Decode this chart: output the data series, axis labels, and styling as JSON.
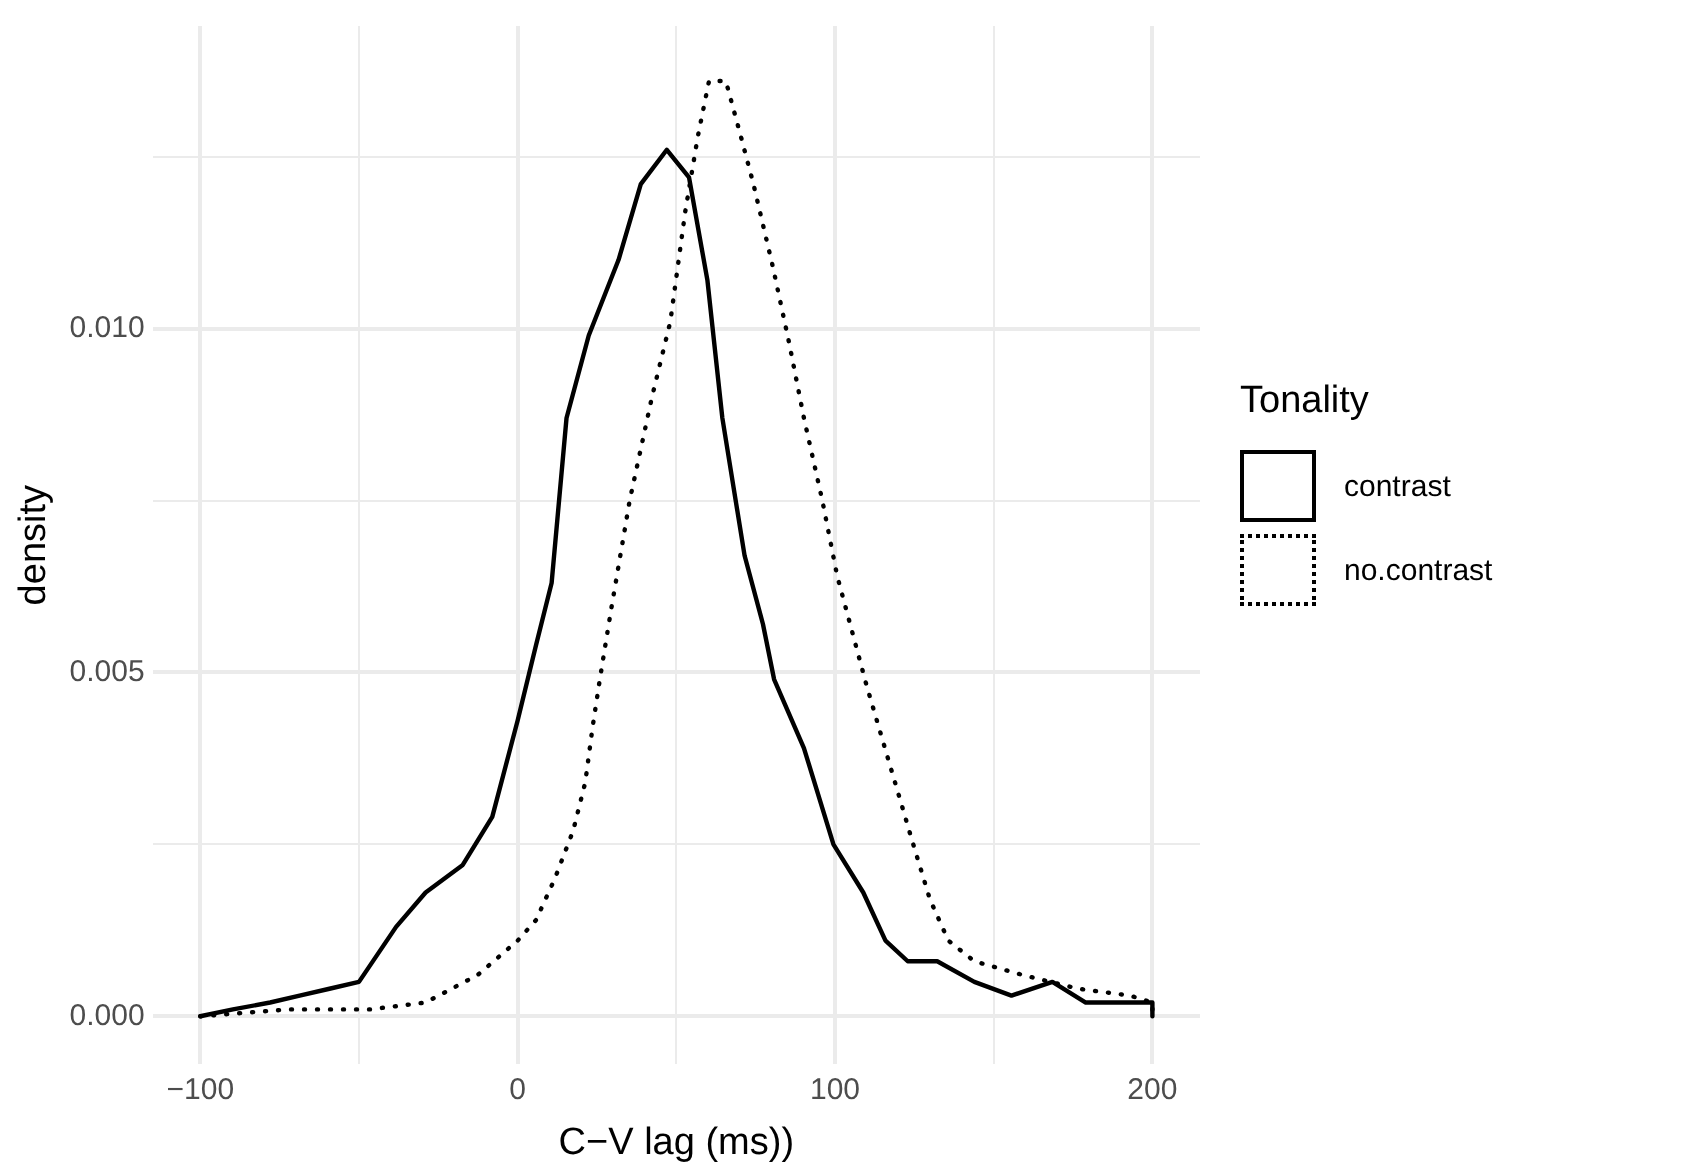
{
  "chart_data": {
    "type": "line",
    "xlabel": "C−V lag (ms))",
    "ylabel": "density",
    "legend_title": "Tonality",
    "xlim": [
      -115,
      215
    ],
    "ylim": [
      -0.0007,
      0.0144
    ],
    "xticks": [
      {
        "value": -100,
        "label": "−100"
      },
      {
        "value": -50,
        "label": null
      },
      0,
      {
        "value": 50,
        "label": null
      },
      100,
      {
        "value": 150,
        "label": null
      },
      200
    ],
    "yticks": [
      {
        "value": 0,
        "label": "0.000"
      },
      {
        "value": 0.0025,
        "label": null
      },
      {
        "value": 0.005,
        "label": "0.005"
      },
      {
        "value": 0.0075,
        "label": null
      },
      {
        "value": 0.01,
        "label": "0.010"
      },
      {
        "value": 0.0125,
        "label": null
      }
    ],
    "grid": true,
    "legend": "right",
    "marker": "none",
    "series": [
      {
        "name": "contrast",
        "color": "#000000",
        "line_style": "solid",
        "x": [
          -100,
          -89.7,
          -78,
          -68.7,
          -59.3,
          -50,
          -38.3,
          -29,
          -17.3,
          -8,
          0,
          5.8,
          10.7,
          15.4,
          22.4,
          31.8,
          38.8,
          47,
          54,
          59.8,
          64.5,
          71.5,
          77.3,
          80.8,
          90.2,
          99.5,
          108.9,
          115.9,
          122.9,
          132.2,
          143.9,
          155.6,
          168.5,
          179,
          200,
          200
        ],
        "values": [
          0,
          0.0001,
          0.0002,
          0.0003,
          0.0004,
          0.0005,
          0.0013,
          0.0018,
          0.0022,
          0.0029,
          0.0043,
          0.0054,
          0.0063,
          0.0087,
          0.0099,
          0.011,
          0.0121,
          0.0126,
          0.0122,
          0.0107,
          0.0087,
          0.0067,
          0.0057,
          0.0049,
          0.0039,
          0.0025,
          0.0018,
          0.0011,
          0.0008,
          0.0008,
          0.0005,
          0.0003,
          0.0005,
          0.0002,
          0.0002,
          0
        ]
      },
      {
        "name": "no.contrast",
        "color": "#000000",
        "line_style": "dotted",
        "x": [
          -100,
          -72,
          -46.5,
          -29,
          -20.8,
          -12.6,
          0,
          5.8,
          11.7,
          17.5,
          21.3,
          23.6,
          25.9,
          29.4,
          35.3,
          42.3,
          48.1,
          52.8,
          56.8,
          60.3,
          65.6,
          70.3,
          74.3,
          80.4,
          85.5,
          90.2,
          96,
          100.7,
          110,
          117,
          124,
          129.9,
          135.7,
          143.9,
          159.1,
          176.7,
          193,
          200,
          200
        ],
        "values": [
          0,
          0.0001,
          0.0001,
          0.0002,
          0.0004,
          0.0006,
          0.0011,
          0.0014,
          0.002,
          0.0027,
          0.0034,
          0.0042,
          0.0049,
          0.0059,
          0.0075,
          0.009,
          0.0101,
          0.0117,
          0.0128,
          0.0136,
          0.0136,
          0.0128,
          0.0121,
          0.0109,
          0.0098,
          0.0087,
          0.0075,
          0.0064,
          0.0048,
          0.0037,
          0.0026,
          0.0017,
          0.0011,
          0.0008,
          0.0006,
          0.0004,
          0.0003,
          0.0002,
          0
        ]
      }
    ]
  }
}
